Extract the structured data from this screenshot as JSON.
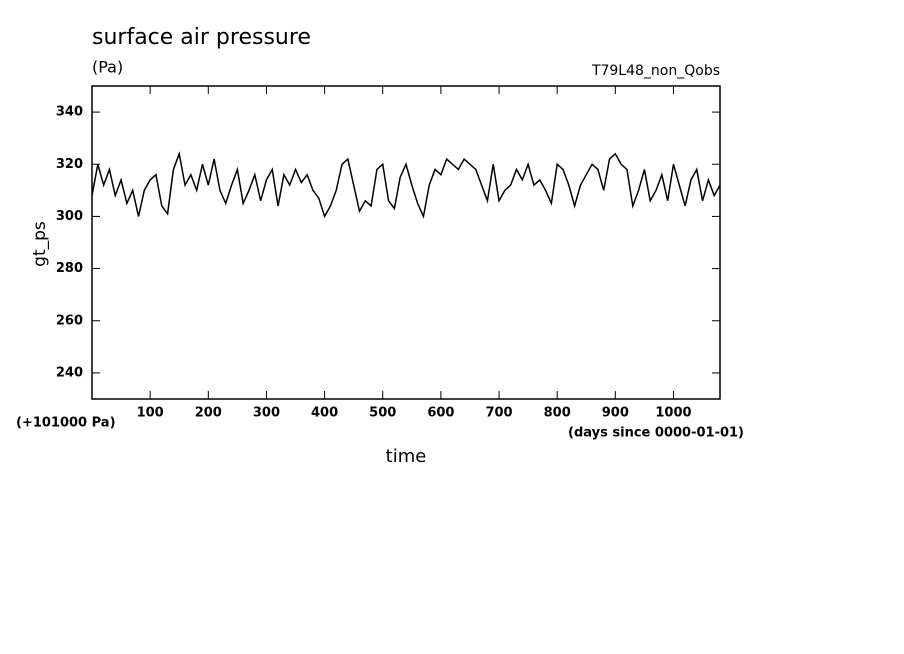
{
  "chart_data": {
    "type": "line",
    "title": "surface air pressure",
    "subtitle": "(Pa)",
    "annotation": "T79L48_non_Qobs",
    "ylabel": "gt_ps",
    "y_offset_label": "(+101000 Pa)",
    "x_units_label": "(days since 0000-01-01)",
    "xlabel": "time",
    "xlim": [
      0,
      1080
    ],
    "ylim": [
      230,
      350
    ],
    "xticks": [
      100,
      200,
      300,
      400,
      500,
      600,
      700,
      800,
      900,
      1000
    ],
    "yticks": [
      240,
      260,
      280,
      300,
      320,
      340
    ],
    "grid": false,
    "series": [
      {
        "color": "#000000",
        "x": [
          0,
          10,
          20,
          30,
          40,
          50,
          60,
          70,
          80,
          90,
          100,
          110,
          120,
          130,
          140,
          150,
          160,
          170,
          180,
          190,
          200,
          210,
          220,
          230,
          240,
          250,
          260,
          270,
          280,
          290,
          300,
          310,
          320,
          330,
          340,
          350,
          360,
          370,
          380,
          390,
          400,
          410,
          420,
          430,
          440,
          450,
          460,
          470,
          480,
          490,
          500,
          510,
          520,
          530,
          540,
          550,
          560,
          570,
          580,
          590,
          600,
          610,
          620,
          630,
          640,
          650,
          660,
          670,
          680,
          690,
          700,
          710,
          720,
          730,
          740,
          750,
          760,
          770,
          780,
          790,
          800,
          810,
          820,
          830,
          840,
          850,
          860,
          870,
          880,
          890,
          900,
          910,
          920,
          930,
          940,
          950,
          960,
          970,
          980,
          990,
          1000,
          1010,
          1020,
          1030,
          1040,
          1050,
          1060,
          1070,
          1080
        ],
        "values": [
          308,
          320,
          312,
          318,
          308,
          314,
          305,
          310,
          300,
          310,
          314,
          316,
          304,
          301,
          318,
          324,
          312,
          316,
          310,
          320,
          312,
          322,
          310,
          305,
          312,
          318,
          305,
          310,
          316,
          306,
          314,
          318,
          304,
          316,
          312,
          318,
          313,
          316,
          310,
          307,
          300,
          304,
          310,
          320,
          322,
          312,
          302,
          306,
          304,
          318,
          320,
          306,
          303,
          315,
          320,
          312,
          305,
          300,
          312,
          318,
          316,
          322,
          320,
          318,
          322,
          320,
          318,
          312,
          306,
          320,
          306,
          310,
          312,
          318,
          314,
          320,
          312,
          314,
          310,
          305,
          320,
          318,
          312,
          304,
          312,
          316,
          320,
          318,
          310,
          322,
          324,
          320,
          318,
          304,
          310,
          318,
          306,
          310,
          316,
          306,
          320,
          312,
          304,
          314,
          318,
          306,
          314,
          308,
          312
        ]
      }
    ]
  }
}
